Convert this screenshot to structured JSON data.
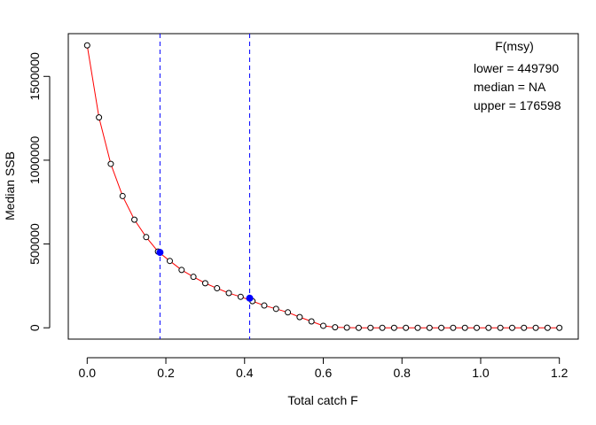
{
  "chart_data": {
    "type": "line",
    "xlabel": "Total catch F",
    "ylabel": "Median SSB",
    "xlim": [
      -0.048,
      1.248
    ],
    "ylim": [
      -67500,
      1755000
    ],
    "x_ticks": [
      0.0,
      0.2,
      0.4,
      0.6,
      0.8,
      1.0,
      1.2
    ],
    "x_tick_labels": [
      "0.0",
      "0.2",
      "0.4",
      "0.6",
      "0.8",
      "1.0",
      "1.2"
    ],
    "y_ticks": [
      0,
      500000,
      1000000,
      1500000
    ],
    "y_tick_labels": [
      "0",
      "500000",
      "1000000",
      "1500000"
    ],
    "series": [
      {
        "x": [
          0.0,
          0.03,
          0.06,
          0.09,
          0.12,
          0.15,
          0.18,
          0.21,
          0.24,
          0.27,
          0.3,
          0.33,
          0.36,
          0.39,
          0.42,
          0.45,
          0.48,
          0.51,
          0.54,
          0.57,
          0.6,
          0.63,
          0.66,
          0.69,
          0.72,
          0.75,
          0.78,
          0.81,
          0.84,
          0.87,
          0.9,
          0.93,
          0.96,
          0.99,
          1.02,
          1.05,
          1.08,
          1.11,
          1.14,
          1.17,
          1.2
        ],
        "y": [
          1685000,
          1255000,
          978000,
          786000,
          645000,
          541000,
          455000,
          399000,
          345000,
          304000,
          266000,
          236000,
          207000,
          185000,
          159000,
          133000,
          113000,
          92000,
          64000,
          38000,
          12000,
          3000,
          1000,
          0,
          0,
          0,
          0,
          0,
          0,
          0,
          0,
          0,
          0,
          0,
          0,
          0,
          0,
          0,
          0,
          0,
          0
        ],
        "line_color": "#ff0000",
        "marker": "open-circle"
      }
    ],
    "highlight_points": [
      {
        "x": 0.185,
        "y": 449790,
        "color": "#0000ff"
      },
      {
        "x": 0.413,
        "y": 176598,
        "color": "#0000ff"
      }
    ],
    "vlines": [
      {
        "x": 0.185,
        "color": "#0000ff",
        "style": "dashed"
      },
      {
        "x": 0.413,
        "color": "#0000ff",
        "style": "dashed"
      }
    ],
    "legend": {
      "title": "F(msy)",
      "title_color": "#0000ff",
      "lines": [
        "lower = 449790",
        "median = NA",
        "upper = 176598"
      ],
      "placement": "top-right"
    }
  }
}
